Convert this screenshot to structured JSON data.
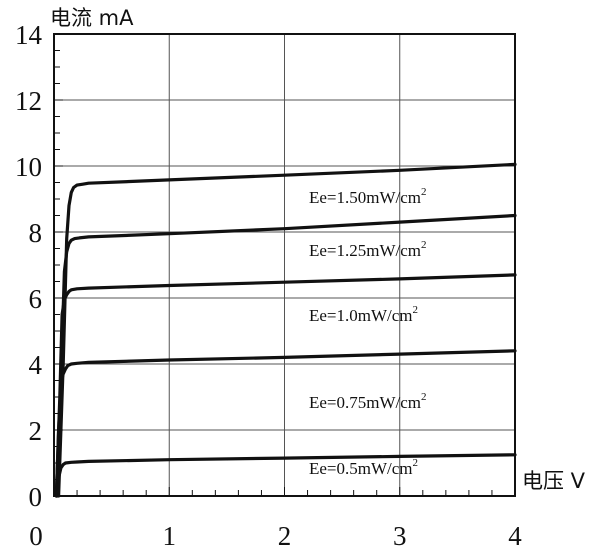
{
  "chart_data": {
    "type": "line",
    "xlabel": "电压 V",
    "ylabel": "电流 mA",
    "xlim": [
      0,
      4
    ],
    "ylim": [
      0,
      14
    ],
    "x_ticks": [
      "0",
      "1",
      "2",
      "3",
      "4"
    ],
    "y_ticks": [
      "0",
      "2",
      "4",
      "6",
      "8",
      "10",
      "12",
      "14"
    ],
    "grid": true,
    "series": [
      {
        "name": "Ee=0.5mW/cm2",
        "label_text": "Ee=0.5mW/cm",
        "label_sup": "2",
        "x": [
          0.02,
          0.04,
          0.06,
          0.08,
          0.1,
          0.15,
          0.2,
          0.3,
          1.0,
          2.0,
          3.0,
          4.0
        ],
        "y": [
          0.0,
          0.55,
          0.85,
          0.95,
          1.0,
          1.02,
          1.03,
          1.05,
          1.1,
          1.15,
          1.2,
          1.25
        ]
      },
      {
        "name": "Ee=0.75mW/cm2",
        "label_text": "Ee=0.75mW/cm",
        "label_sup": "2",
        "x": [
          0.02,
          0.04,
          0.06,
          0.08,
          0.1,
          0.12,
          0.15,
          0.2,
          0.3,
          1.0,
          2.0,
          3.0,
          4.0
        ],
        "y": [
          0.0,
          2.0,
          3.4,
          3.7,
          3.85,
          3.95,
          4.0,
          4.02,
          4.05,
          4.12,
          4.2,
          4.3,
          4.4
        ]
      },
      {
        "name": "Ee=1.0mW/cm2",
        "label_text": "Ee=1.0mW/cm",
        "label_sup": "2",
        "x": [
          0.02,
          0.05,
          0.07,
          0.09,
          0.11,
          0.13,
          0.15,
          0.2,
          0.3,
          1.0,
          2.0,
          3.0,
          4.0
        ],
        "y": [
          0.0,
          3.0,
          5.5,
          5.95,
          6.1,
          6.2,
          6.25,
          6.28,
          6.3,
          6.38,
          6.48,
          6.58,
          6.7
        ]
      },
      {
        "name": "Ee=1.25mW/cm2",
        "label_text": "Ee=1.25mW/cm",
        "label_sup": "2",
        "x": [
          0.03,
          0.06,
          0.09,
          0.11,
          0.13,
          0.15,
          0.18,
          0.22,
          0.3,
          1.0,
          2.0,
          3.0,
          4.0
        ],
        "y": [
          0.0,
          3.5,
          6.8,
          7.4,
          7.65,
          7.75,
          7.8,
          7.82,
          7.85,
          7.95,
          8.1,
          8.3,
          8.5
        ]
      },
      {
        "name": "Ee=1.50mW/cm2",
        "label_text": "Ee=1.50mW/cm",
        "label_sup": "2",
        "x": [
          0.04,
          0.08,
          0.11,
          0.13,
          0.15,
          0.17,
          0.2,
          0.25,
          0.3,
          1.0,
          2.0,
          3.0,
          4.0
        ],
        "y": [
          0.0,
          4.0,
          7.8,
          8.8,
          9.2,
          9.35,
          9.42,
          9.45,
          9.48,
          9.58,
          9.72,
          9.87,
          10.05
        ]
      }
    ]
  }
}
